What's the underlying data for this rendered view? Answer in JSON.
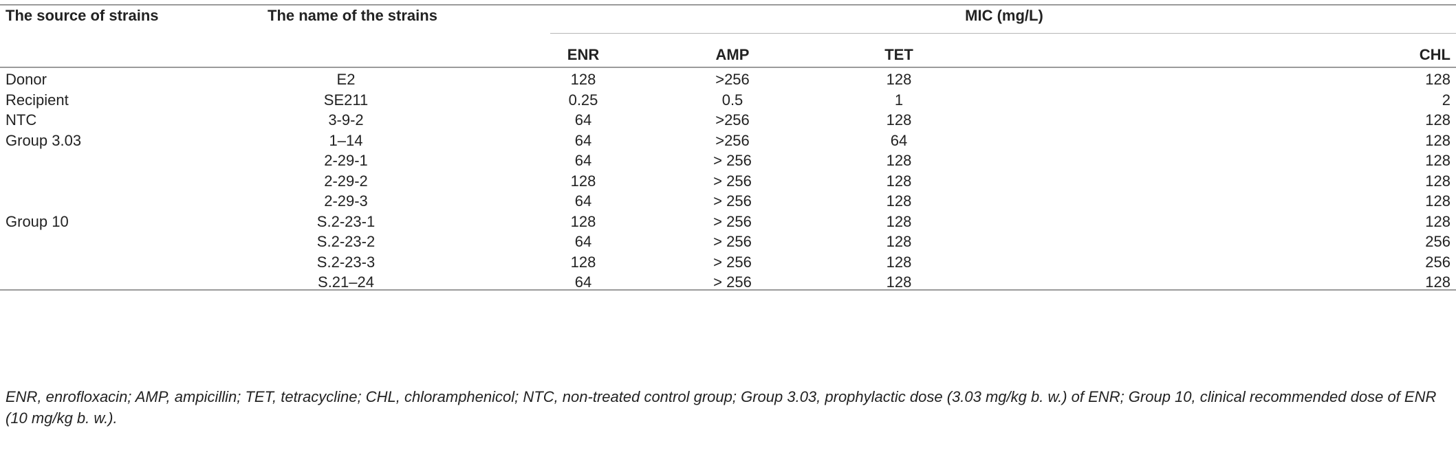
{
  "table": {
    "headers": {
      "source": "The source of strains",
      "name": "The name of the strains",
      "mic_group": "MIC (mg/L)",
      "enr": "ENR",
      "amp": "AMP",
      "tet": "TET",
      "chl": "CHL"
    },
    "rows": [
      {
        "source": "Donor",
        "name": "E2",
        "enr": "128",
        "amp": ">256",
        "tet": "128",
        "chl": "128"
      },
      {
        "source": "Recipient",
        "name": "SE211",
        "enr": "0.25",
        "amp": "0.5",
        "tet": "1",
        "chl": "2"
      },
      {
        "source": "NTC",
        "name": "3-9-2",
        "enr": "64",
        "amp": ">256",
        "tet": "128",
        "chl": "128"
      },
      {
        "source": "Group 3.03",
        "name": "1–14",
        "enr": "64",
        "amp": ">256",
        "tet": "64",
        "chl": "128"
      },
      {
        "source": "",
        "name": "2-29-1",
        "enr": "64",
        "amp": "> 256",
        "tet": "128",
        "chl": "128"
      },
      {
        "source": "",
        "name": "2-29-2",
        "enr": "128",
        "amp": "> 256",
        "tet": "128",
        "chl": "128"
      },
      {
        "source": "",
        "name": "2-29-3",
        "enr": "64",
        "amp": "> 256",
        "tet": "128",
        "chl": "128"
      },
      {
        "source": "Group 10",
        "name": "S.2-23-1",
        "enr": "128",
        "amp": "> 256",
        "tet": "128",
        "chl": "128"
      },
      {
        "source": "",
        "name": "S.2-23-2",
        "enr": "64",
        "amp": "> 256",
        "tet": "128",
        "chl": "256"
      },
      {
        "source": "",
        "name": "S.2-23-3",
        "enr": "128",
        "amp": "> 256",
        "tet": "128",
        "chl": "256"
      },
      {
        "source": "",
        "name": "S.21–24",
        "enr": "64",
        "amp": "> 256",
        "tet": "128",
        "chl": "128"
      }
    ]
  },
  "footnote": "ENR, enrofloxacin; AMP, ampicillin; TET, tetracycline; CHL, chloramphenicol; NTC, non-treated control group; Group 3.03, prophylactic dose (3.03 mg/kg b. w.) of ENR; Group 10, clinical recommended dose of ENR (10 mg/kg b. w.)."
}
